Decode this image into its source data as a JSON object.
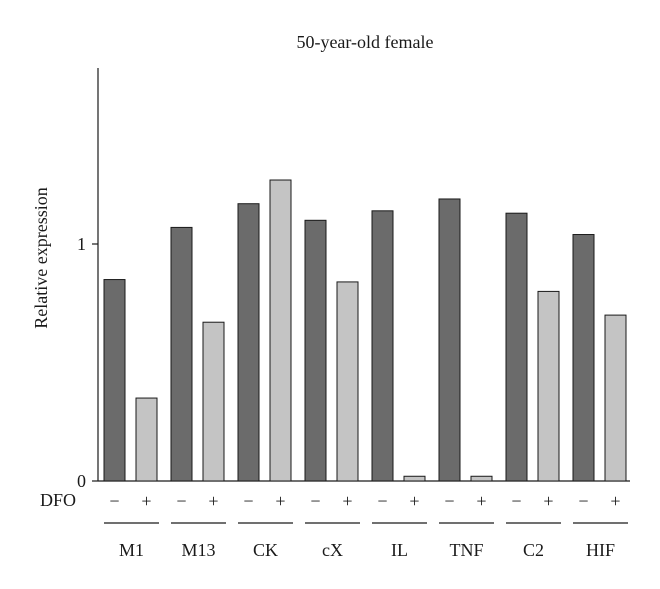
{
  "chart_data": {
    "type": "bar",
    "title": "50-year-old female",
    "ylabel": "Relative expression",
    "xlabel": "",
    "ylim": [
      0,
      1.75
    ],
    "yticks": [
      0,
      1
    ],
    "treatment_label": "DFO",
    "treatment_levels": [
      "−",
      "+"
    ],
    "categories": [
      "M1",
      "M13",
      "CK",
      "cX",
      "IL",
      "TNF",
      "C2",
      "HIF"
    ],
    "series": [
      {
        "treatment": "−",
        "color": "#6b6b6b",
        "values": [
          0.85,
          1.07,
          1.17,
          1.1,
          1.14,
          1.19,
          1.13,
          1.04
        ]
      },
      {
        "treatment": "+",
        "color": "#c4c4c4",
        "values": [
          0.35,
          0.67,
          1.27,
          0.84,
          0.02,
          0.02,
          0.8,
          0.7
        ]
      }
    ],
    "grid": false,
    "legend": "none"
  }
}
